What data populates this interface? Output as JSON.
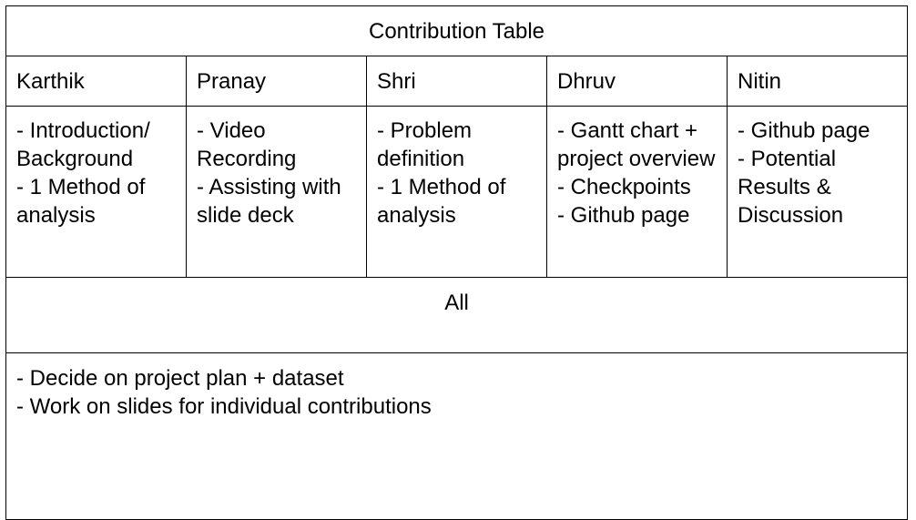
{
  "table": {
    "title": "Contribution Table",
    "members": [
      {
        "name": "Karthik",
        "tasks": [
          "- Introduction/ Background",
          "- 1 Method of analysis"
        ]
      },
      {
        "name": "Pranay",
        "tasks": [
          "- Video Recording",
          "- Assisting with slide deck"
        ]
      },
      {
        "name": "Shri",
        "tasks": [
          "- Problem definition",
          "- 1 Method of analysis"
        ]
      },
      {
        "name": "Dhruv",
        "tasks": [
          "- Gantt chart + project overview",
          "- Checkpoints",
          "- Github page"
        ]
      },
      {
        "name": "Nitin",
        "tasks": [
          "- Github page",
          "- Potential Results & Discussion"
        ]
      }
    ],
    "all_label": "All",
    "shared_tasks": [
      "- Decide on project plan + dataset",
      "- Work on slides for individual contributions"
    ]
  }
}
